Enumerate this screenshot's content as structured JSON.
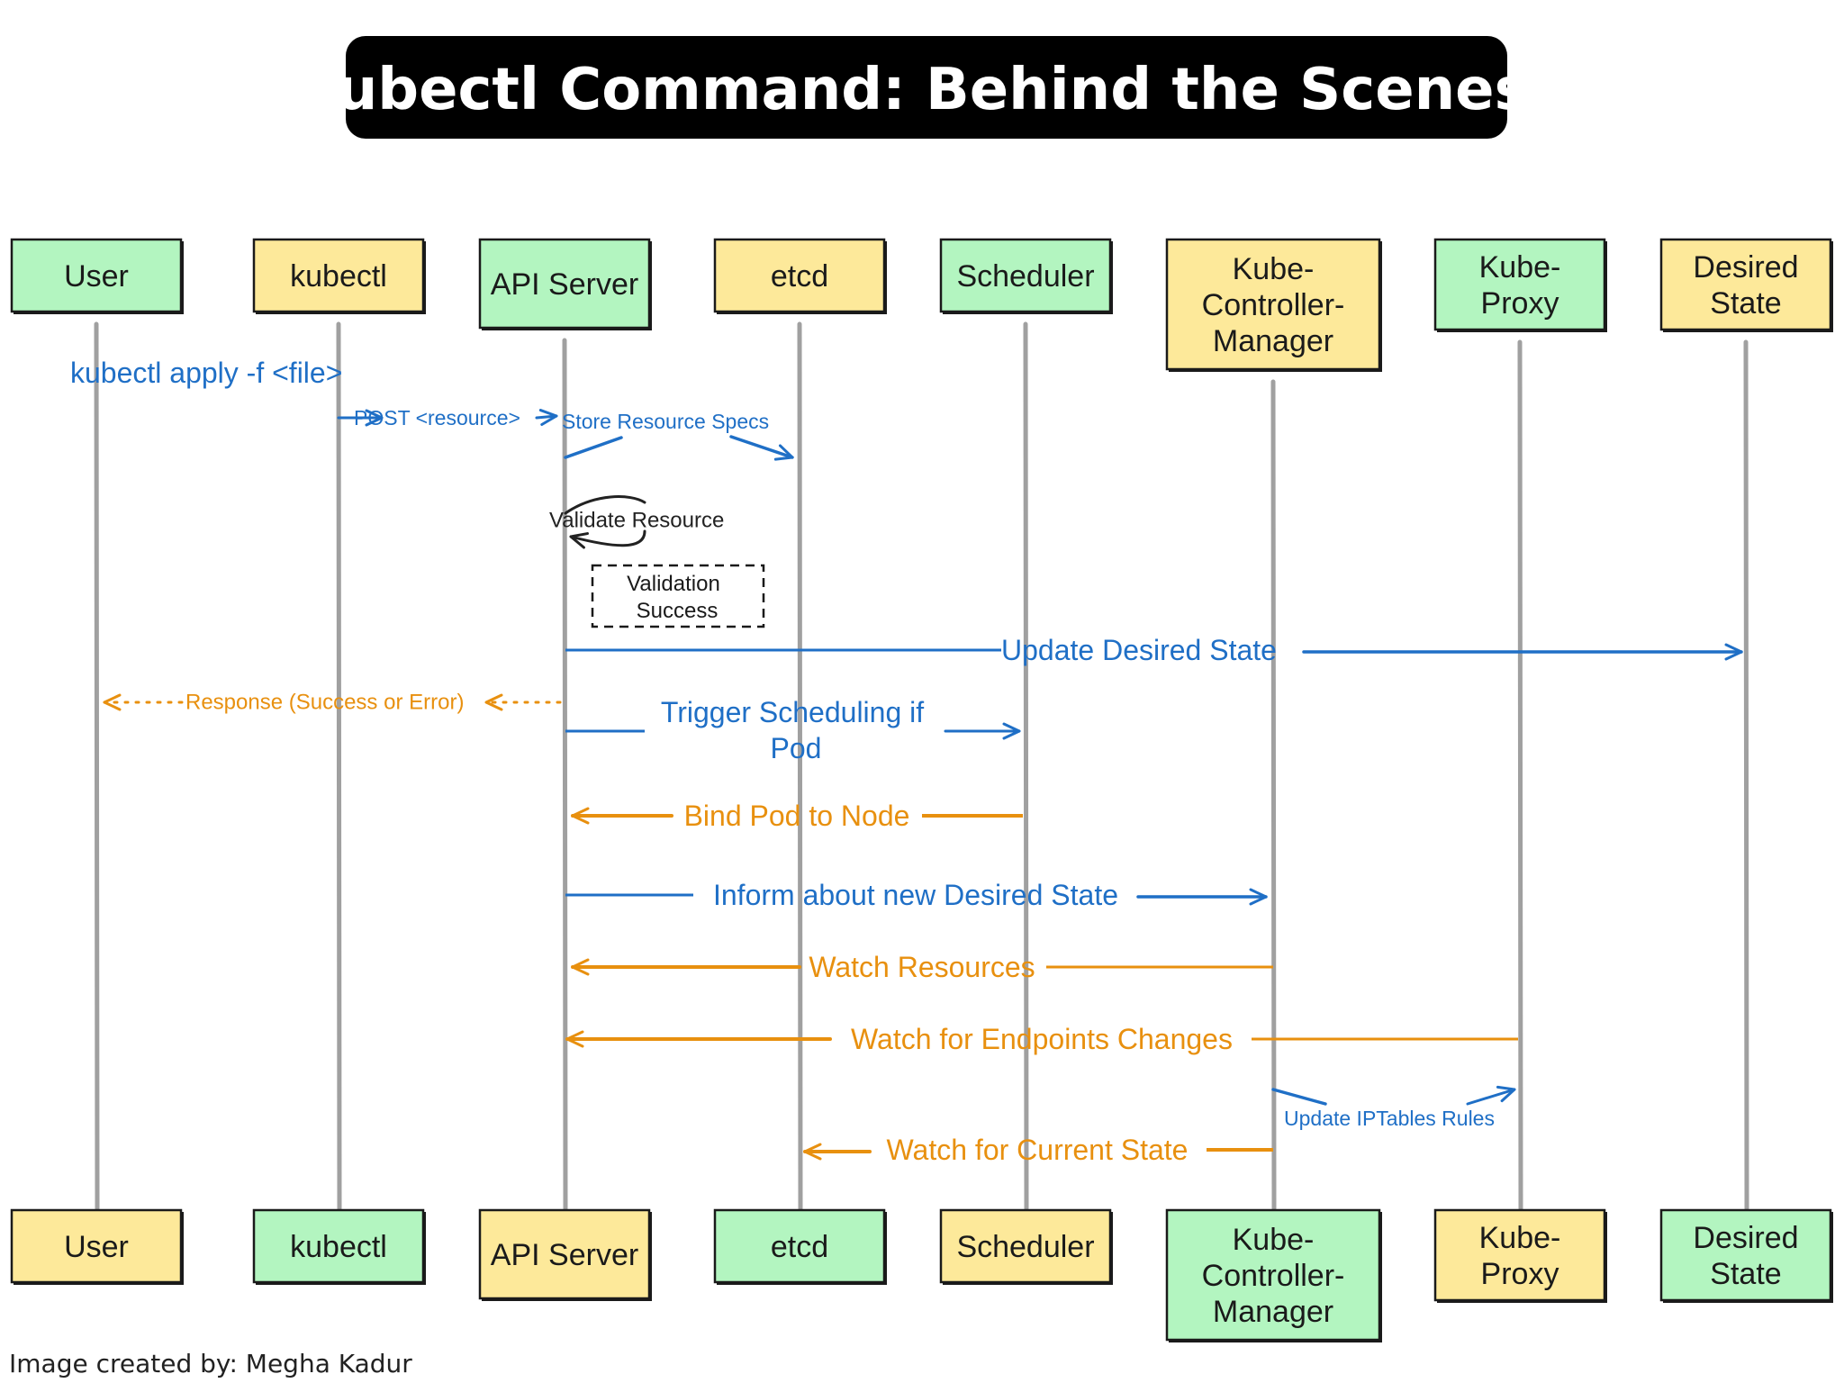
{
  "title": "kubectl Command: Behind the Scenes!",
  "credit": "Image created by: Megha Kadur",
  "colors": {
    "green": "#b3f5c0",
    "yellow": "#fde99a",
    "blue": "#1f6fc6",
    "orange": "#e8900f",
    "lifeline": "#a0a0a0",
    "title_bg": "#000000"
  },
  "participants": [
    {
      "id": "user",
      "label": "User",
      "top_color": "green",
      "bottom_color": "yellow"
    },
    {
      "id": "kubectl",
      "label": "kubectl",
      "top_color": "yellow",
      "bottom_color": "green"
    },
    {
      "id": "api-server",
      "label": "API Server",
      "top_color": "green",
      "bottom_color": "yellow"
    },
    {
      "id": "etcd",
      "label": "etcd",
      "top_color": "yellow",
      "bottom_color": "green"
    },
    {
      "id": "scheduler",
      "label": "Scheduler",
      "top_color": "green",
      "bottom_color": "yellow"
    },
    {
      "id": "kube-controller-manager",
      "label": "Kube-Controller-Manager",
      "top_color": "yellow",
      "bottom_color": "green"
    },
    {
      "id": "kube-proxy",
      "label": "Kube-Proxy",
      "top_color": "green",
      "bottom_color": "yellow"
    },
    {
      "id": "desired-state",
      "label": "Desired State",
      "top_color": "yellow",
      "bottom_color": "green"
    }
  ],
  "messages": [
    {
      "id": "kubectl-apply",
      "text": "kubectl apply -f <file>",
      "from": "user",
      "to": "kubectl",
      "color": "blue",
      "style": "label"
    },
    {
      "id": "post-resource",
      "text": "POST <resource>",
      "from": "kubectl",
      "to": "api-server",
      "color": "blue",
      "style": "solid"
    },
    {
      "id": "store-resource-specs",
      "text": "Store Resource Specs",
      "from": "api-server",
      "to": "etcd",
      "color": "blue",
      "style": "solid"
    },
    {
      "id": "validate-resource",
      "text": "Validate Resource",
      "from": "api-server",
      "to": "api-server",
      "color": "black",
      "style": "self"
    },
    {
      "id": "validation-success",
      "text": "Validation Success",
      "style": "note"
    },
    {
      "id": "update-desired-state",
      "text": "Update Desired State",
      "from": "api-server",
      "to": "desired-state",
      "color": "blue",
      "style": "solid"
    },
    {
      "id": "response",
      "text": "Response (Success or Error)",
      "from": "api-server",
      "to": "user",
      "color": "orange",
      "style": "dotted"
    },
    {
      "id": "trigger-scheduling",
      "text": "Trigger Scheduling if Pod",
      "from": "api-server",
      "to": "scheduler",
      "color": "blue",
      "style": "solid"
    },
    {
      "id": "bind-pod-to-node",
      "text": "Bind Pod to Node",
      "from": "scheduler",
      "to": "api-server",
      "color": "orange",
      "style": "solid"
    },
    {
      "id": "inform-desired-state",
      "text": "Inform about new Desired State",
      "from": "api-server",
      "to": "kube-controller-manager",
      "color": "blue",
      "style": "solid"
    },
    {
      "id": "watch-resources",
      "text": "Watch Resources",
      "from": "kube-controller-manager",
      "to": "api-server",
      "color": "orange",
      "style": "solid"
    },
    {
      "id": "watch-endpoints",
      "text": "Watch for Endpoints Changes",
      "from": "kube-proxy",
      "to": "api-server",
      "color": "orange",
      "style": "solid"
    },
    {
      "id": "update-iptables",
      "text": "Update IPTables Rules",
      "from": "kube-controller-manager",
      "to": "kube-proxy",
      "color": "blue",
      "style": "solid"
    },
    {
      "id": "watch-current-state",
      "text": "Watch for Current State",
      "from": "kube-controller-manager",
      "to": "etcd",
      "color": "orange",
      "style": "solid"
    }
  ]
}
